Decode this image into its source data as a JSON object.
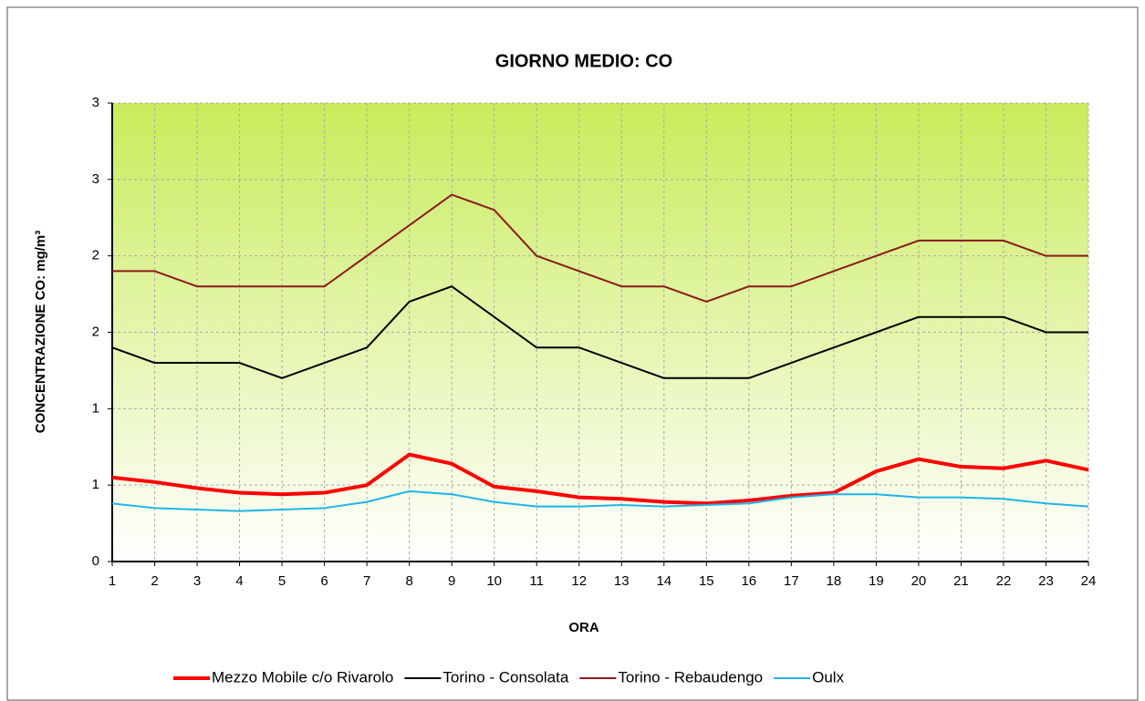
{
  "chart_data": {
    "type": "line",
    "title": "GIORNO MEDIO: CO",
    "xlabel": "ORA",
    "ylabel": "CONCENTRAZIONE CO: mg/m³",
    "x": [
      1,
      2,
      3,
      4,
      5,
      6,
      7,
      8,
      9,
      10,
      11,
      12,
      13,
      14,
      15,
      16,
      17,
      18,
      19,
      20,
      21,
      22,
      23,
      24
    ],
    "xlim": [
      1,
      24
    ],
    "xticks": [
      1,
      2,
      3,
      4,
      5,
      6,
      7,
      8,
      9,
      10,
      11,
      12,
      13,
      14,
      15,
      16,
      17,
      18,
      19,
      20,
      21,
      22,
      23,
      24
    ],
    "ylim": [
      0,
      3
    ],
    "yticks": [
      0,
      {
        "value": 0.5,
        "label": "1"
      },
      1,
      {
        "value": 1.5,
        "label": "2"
      },
      2,
      {
        "value": 2.5,
        "label": "3"
      },
      3
    ],
    "grid": true,
    "legend": "bottom",
    "series": [
      {
        "name": "Mezzo Mobile c/o Rivarolo",
        "color": "#ff0000",
        "width": 4,
        "values": [
          0.55,
          0.52,
          0.48,
          0.45,
          0.44,
          0.45,
          0.5,
          0.7,
          0.64,
          0.49,
          0.46,
          0.42,
          0.41,
          0.39,
          0.38,
          0.4,
          0.43,
          0.45,
          0.59,
          0.67,
          0.62,
          0.61,
          0.66,
          0.6
        ]
      },
      {
        "name": "Torino - Consolata",
        "color": "#000000",
        "width": 2,
        "values": [
          1.4,
          1.3,
          1.3,
          1.3,
          1.2,
          1.3,
          1.4,
          1.7,
          1.8,
          1.6,
          1.4,
          1.4,
          1.3,
          1.2,
          1.2,
          1.2,
          1.3,
          1.4,
          1.5,
          1.6,
          1.6,
          1.6,
          1.5,
          1.5
        ]
      },
      {
        "name": "Torino - Rebaudengo",
        "color": "#8b1a1a",
        "width": 2,
        "values": [
          1.9,
          1.9,
          1.8,
          1.8,
          1.8,
          1.8,
          2.0,
          2.2,
          2.4,
          2.3,
          2.0,
          1.9,
          1.8,
          1.8,
          1.7,
          1.8,
          1.8,
          1.9,
          2.0,
          2.1,
          2.1,
          2.1,
          2.0,
          2.0
        ]
      },
      {
        "name": "Oulx",
        "color": "#1fb4e8",
        "width": 2,
        "values": [
          0.38,
          0.35,
          0.34,
          0.33,
          0.34,
          0.35,
          0.39,
          0.46,
          0.44,
          0.39,
          0.36,
          0.36,
          0.37,
          0.36,
          0.37,
          0.38,
          0.42,
          0.44,
          0.44,
          0.42,
          0.42,
          0.41,
          0.38,
          0.36
        ]
      }
    ]
  }
}
